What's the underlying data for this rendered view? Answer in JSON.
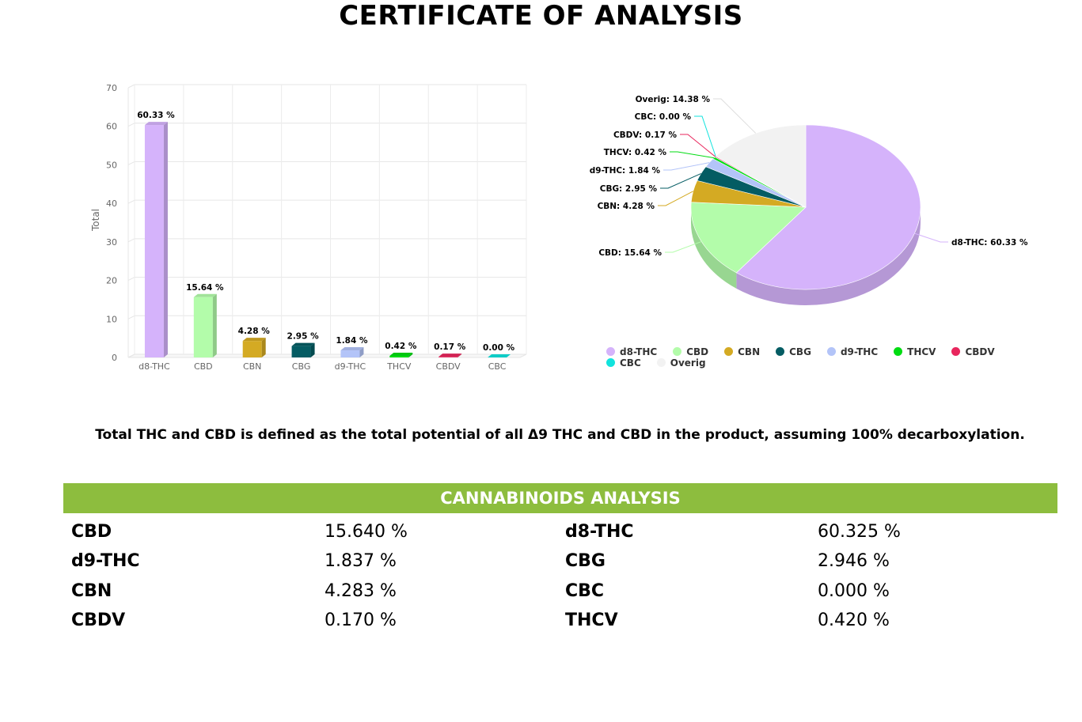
{
  "title": "CERTIFICATE OF ANALYSIS",
  "note": "Total THC and CBD is defined as the total potential of all Δ9 THC and CBD in the product, assuming 100% decarboxylation.",
  "analysis": {
    "header": "CANNABINOIDS ANALYSIS",
    "rows": [
      {
        "name1": "CBD",
        "value1": "15.640 %",
        "name2": "d8-THC",
        "value2": "60.325 %"
      },
      {
        "name1": "d9-THC",
        "value1": "1.837 %",
        "name2": "CBG",
        "value2": "2.946 %"
      },
      {
        "name1": "CBN",
        "value1": "4.283 %",
        "name2": "CBC",
        "value2": "0.000 %"
      },
      {
        "name1": "CBDV",
        "value1": "0.170 %",
        "name2": "THCV",
        "value2": "0.420 %"
      }
    ]
  },
  "chart_data": [
    {
      "type": "bar",
      "ylabel": "Total",
      "ylim": [
        0,
        70
      ],
      "yticks": [
        "0",
        "10",
        "20",
        "30",
        "40",
        "50",
        "60",
        "70"
      ],
      "categories": [
        "d8-THC",
        "CBD",
        "CBN",
        "CBG",
        "d9-THC",
        "THCV",
        "CBDV",
        "CBC"
      ],
      "values": [
        60.33,
        15.64,
        4.28,
        2.95,
        1.84,
        0.42,
        0.17,
        0.0
      ],
      "data_labels": [
        "60.33 %",
        "15.64 %",
        "4.28 %",
        "2.95 %",
        "1.84 %",
        "0.42 %",
        "0.17 %",
        "0.00 %"
      ],
      "colors": [
        "#d5b3fb",
        "#b3fcaa",
        "#d4aa23",
        "#045c63",
        "#b3c4f8",
        "#00dc12",
        "#e8265d",
        "#11e3dd"
      ],
      "grid": true
    },
    {
      "type": "pie",
      "categories": [
        "d8-THC",
        "CBD",
        "CBN",
        "CBG",
        "d9-THC",
        "THCV",
        "CBDV",
        "CBC",
        "Overig"
      ],
      "values": [
        60.33,
        15.64,
        4.28,
        2.95,
        1.84,
        0.42,
        0.17,
        0.0,
        14.38
      ],
      "data_labels": [
        "d8-THC: 60.33 %",
        "CBD: 15.64 %",
        "CBN: 4.28 %",
        "CBG: 2.95 %",
        "d9-THC: 1.84 %",
        "THCV: 0.42 %",
        "CBDV: 0.17 %",
        "CBC: 0.00 %",
        "Overig: 14.38 %"
      ],
      "colors": [
        "#d5b3fb",
        "#b3fcaa",
        "#d4aa23",
        "#045c63",
        "#b3c4f8",
        "#00dc12",
        "#e8265d",
        "#11e3dd",
        "#f2f2f2"
      ],
      "legend": [
        "d8-THC",
        "CBD",
        "CBN",
        "CBG",
        "d9-THC",
        "THCV",
        "CBDV",
        "CBC",
        "Overig"
      ],
      "legend_position": "bottom"
    }
  ]
}
